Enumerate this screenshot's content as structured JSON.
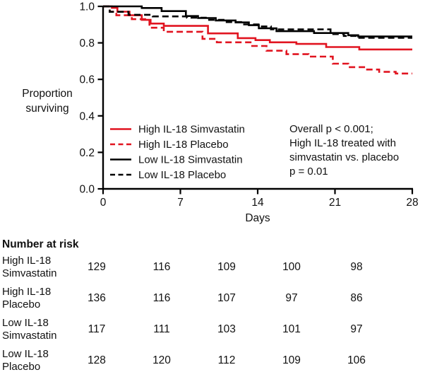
{
  "chart": {
    "y_axis": {
      "label_line1": "Proportion",
      "label_line2": "surviving",
      "ticks": [
        "1.0",
        "0.8",
        "0.6",
        "0.4",
        "0.2",
        "0.0"
      ]
    },
    "x_axis": {
      "label": "Days",
      "ticks": [
        "0",
        "7",
        "14",
        "21",
        "28"
      ]
    },
    "legend": [
      {
        "label": "High IL-18 Simvastatin",
        "color": "#e11420",
        "dash": false
      },
      {
        "label": "High IL-18 Placebo",
        "color": "#e11420",
        "dash": true
      },
      {
        "label": "Low IL-18 Simvastatin",
        "color": "#000000",
        "dash": false
      },
      {
        "label": "Low IL-18 Placebo",
        "color": "#000000",
        "dash": true
      }
    ],
    "annotation": {
      "lines": [
        "Overall p < 0.001;",
        "High IL-18 treated with",
        "simvastatin vs. placebo",
        "p = 0.01"
      ]
    },
    "colors": {
      "axis": "#000000",
      "red": "#e11420",
      "black": "#000000"
    }
  },
  "chart_data": {
    "type": "line",
    "subtype": "kaplan-meier-step",
    "xlabel": "Days",
    "ylabel": "Proportion surviving",
    "xlim": [
      0,
      28
    ],
    "ylim": [
      0.0,
      1.0
    ],
    "x_ticks": [
      0,
      7,
      14,
      21,
      28
    ],
    "y_ticks": [
      1.0,
      0.8,
      0.6,
      0.4,
      0.2,
      0.0
    ],
    "grid": false,
    "legend_position": "inside-lower-left",
    "annotation": "Overall p < 0.001; High IL-18 treated with simvastatin vs. placebo p = 0.01",
    "series": [
      {
        "name": "High IL-18 Simvastatin",
        "color": "#e11420",
        "style": "solid",
        "steps": [
          [
            0,
            1.0
          ],
          [
            0.8,
            0.992
          ],
          [
            1.3,
            0.971
          ],
          [
            2.4,
            0.951
          ],
          [
            3.5,
            0.926
          ],
          [
            4.3,
            0.906
          ],
          [
            5.5,
            0.893
          ],
          [
            9.5,
            0.852
          ],
          [
            12.2,
            0.826
          ],
          [
            13.8,
            0.815
          ],
          [
            15.1,
            0.803
          ],
          [
            17.5,
            0.794
          ],
          [
            20.2,
            0.777
          ],
          [
            23.2,
            0.764
          ]
        ]
      },
      {
        "name": "High IL-18 Placebo",
        "color": "#e11420",
        "style": "dashed",
        "steps": [
          [
            0,
            1.0
          ],
          [
            0.6,
            0.971
          ],
          [
            1.2,
            0.951
          ],
          [
            2.6,
            0.93
          ],
          [
            4.2,
            0.883
          ],
          [
            5.5,
            0.861
          ],
          [
            9.0,
            0.822
          ],
          [
            10.3,
            0.803
          ],
          [
            13.5,
            0.783
          ],
          [
            14.8,
            0.757
          ],
          [
            16.6,
            0.738
          ],
          [
            18.6,
            0.725
          ],
          [
            20.8,
            0.686
          ],
          [
            22.2,
            0.667
          ],
          [
            23.8,
            0.654
          ],
          [
            25.0,
            0.641
          ],
          [
            26.5,
            0.632
          ]
        ]
      },
      {
        "name": "Low IL-18 Simvastatin",
        "color": "#000000",
        "style": "solid",
        "steps": [
          [
            0,
            1.0
          ],
          [
            3.5,
            0.991
          ],
          [
            5.3,
            0.974
          ],
          [
            7.5,
            0.947
          ],
          [
            8.6,
            0.936
          ],
          [
            10.2,
            0.923
          ],
          [
            12.0,
            0.912
          ],
          [
            13.2,
            0.897
          ],
          [
            14.1,
            0.88
          ],
          [
            15.7,
            0.864
          ],
          [
            19.1,
            0.854
          ],
          [
            22.2,
            0.842
          ],
          [
            23.1,
            0.835
          ]
        ]
      },
      {
        "name": "Low IL-18 Placebo",
        "color": "#000000",
        "style": "dashed",
        "steps": [
          [
            0,
            1.0
          ],
          [
            0.6,
            0.97
          ],
          [
            2.3,
            0.954
          ],
          [
            4.5,
            0.945
          ],
          [
            7.6,
            0.938
          ],
          [
            9.3,
            0.926
          ],
          [
            11.0,
            0.914
          ],
          [
            12.5,
            0.901
          ],
          [
            14.2,
            0.89
          ],
          [
            15.2,
            0.874
          ],
          [
            20.6,
            0.848
          ],
          [
            21.8,
            0.838
          ],
          [
            23.0,
            0.828
          ]
        ]
      }
    ]
  },
  "risk_table": {
    "header": "Number at risk",
    "rows": [
      {
        "label_line1": "High IL-18",
        "label_line2": "Simvastatin",
        "counts": [
          "129",
          "116",
          "109",
          "100",
          "98"
        ]
      },
      {
        "label_line1": "High IL-18",
        "label_line2": "Placebo",
        "counts": [
          "136",
          "116",
          "107",
          "97",
          "86"
        ]
      },
      {
        "label_line1": "Low IL-18",
        "label_line2": "Simvastatin",
        "counts": [
          "117",
          "111",
          "103",
          "101",
          "97"
        ]
      },
      {
        "label_line1": "Low IL-18",
        "label_line2": "Placebo",
        "counts": [
          "128",
          "120",
          "112",
          "109",
          "106"
        ]
      }
    ]
  }
}
